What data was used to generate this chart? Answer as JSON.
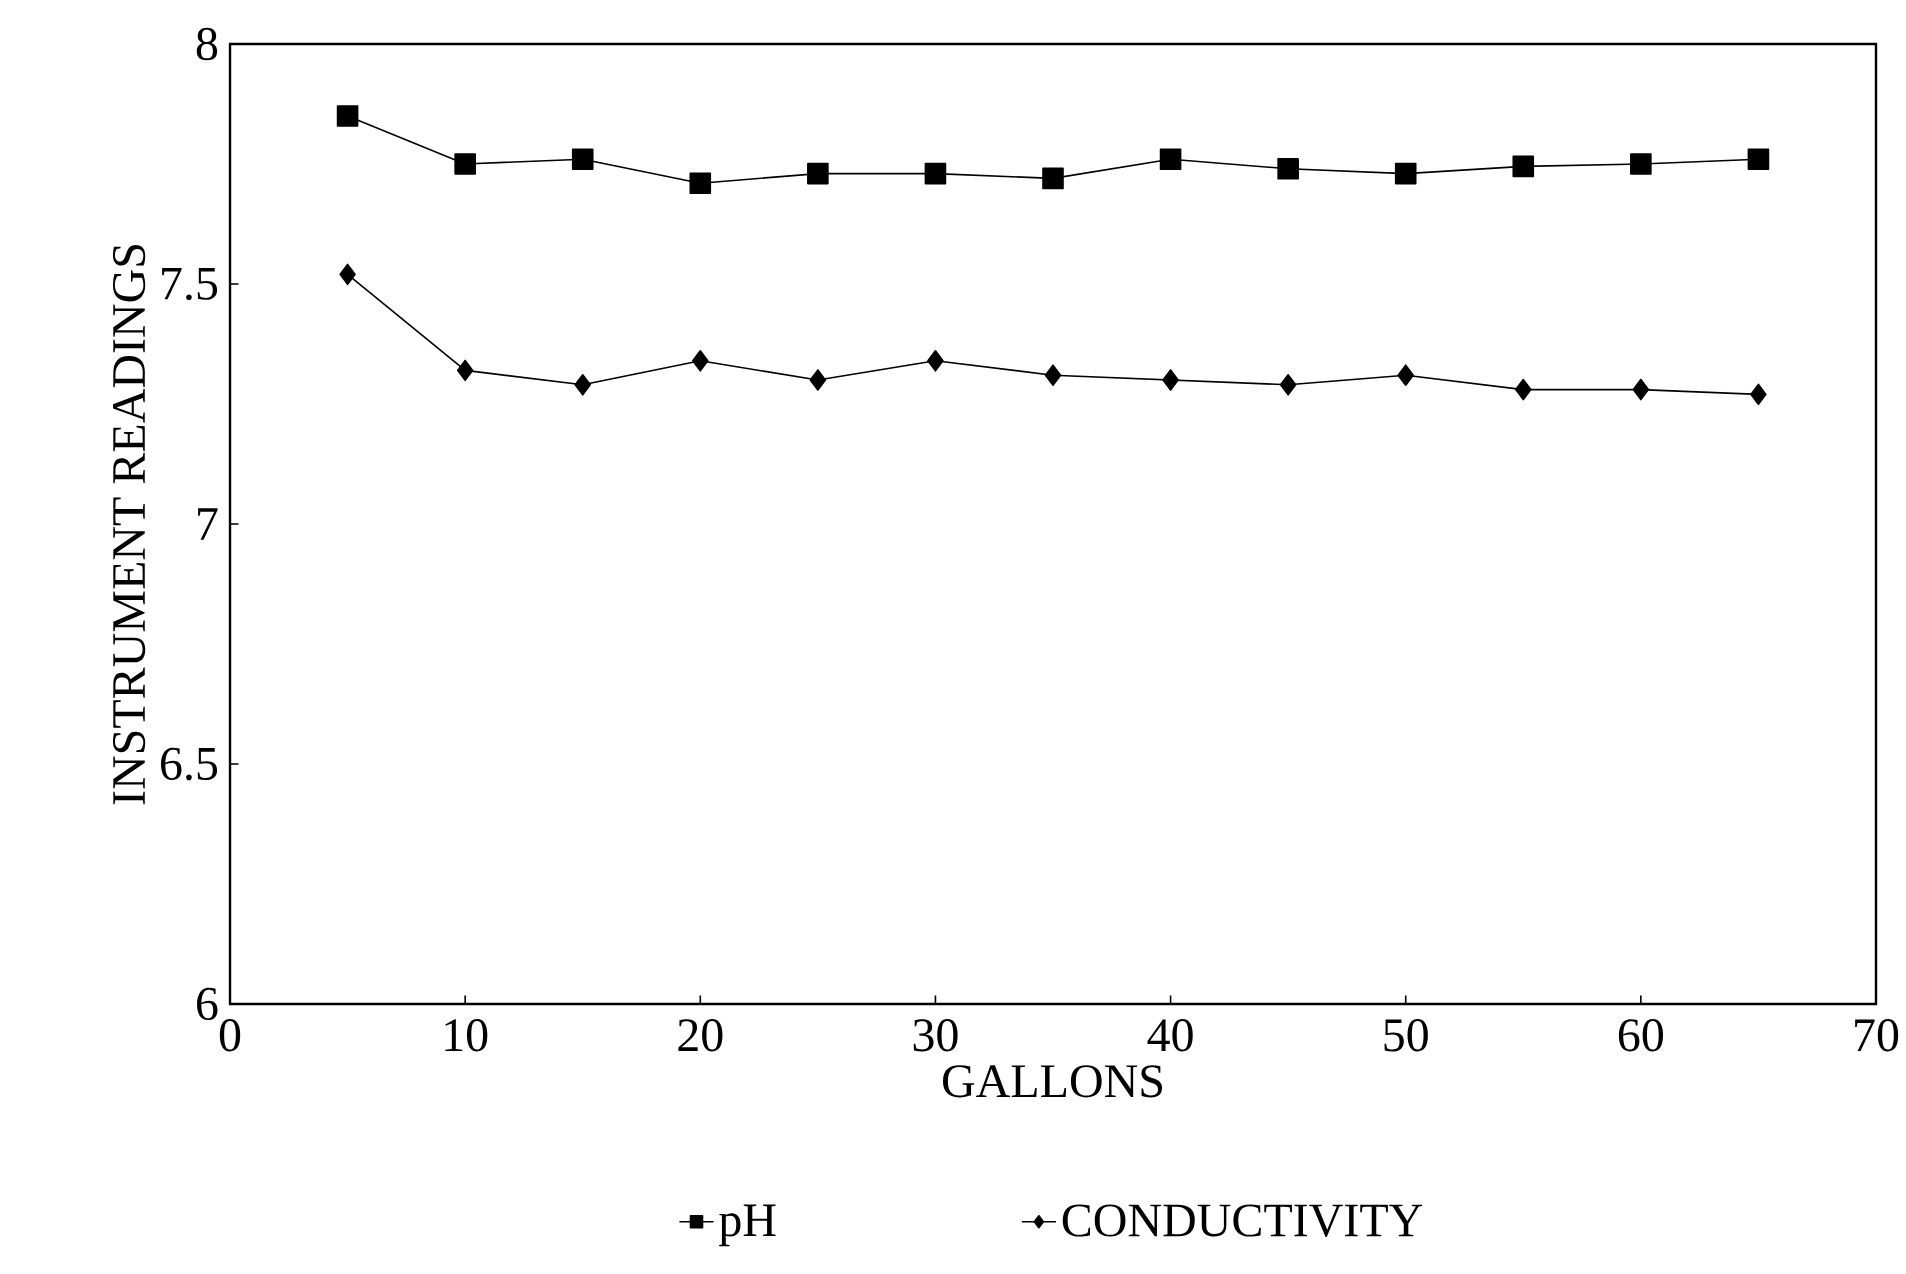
{
  "chart_data": {
    "type": "line",
    "xlabel": "GALLONS",
    "ylabel": "INSTRUMENT READINGS",
    "x": [
      5,
      10,
      15,
      20,
      25,
      30,
      35,
      40,
      45,
      50,
      55,
      60,
      65
    ],
    "series": [
      {
        "name": "pH",
        "color": "#000000",
        "marker": "square",
        "values": [
          7.85,
          7.75,
          7.76,
          7.71,
          7.73,
          7.73,
          7.72,
          7.76,
          7.74,
          7.73,
          7.745,
          7.75,
          7.76
        ]
      },
      {
        "name": "CONDUCTIVITY",
        "color": "#000000",
        "marker": "diamond",
        "values": [
          7.52,
          7.32,
          7.29,
          7.34,
          7.3,
          7.34,
          7.31,
          7.3,
          7.29,
          7.31,
          7.28,
          7.28,
          7.27
        ]
      }
    ],
    "xlim": [
      0,
      70
    ],
    "ylim": [
      6,
      8
    ],
    "xticks": [
      0,
      10,
      20,
      30,
      40,
      50,
      60,
      70
    ],
    "yticks": [
      6,
      6.5,
      7,
      7.5,
      8
    ],
    "grid": false,
    "legend": "bottom",
    "line_style": "solid"
  }
}
